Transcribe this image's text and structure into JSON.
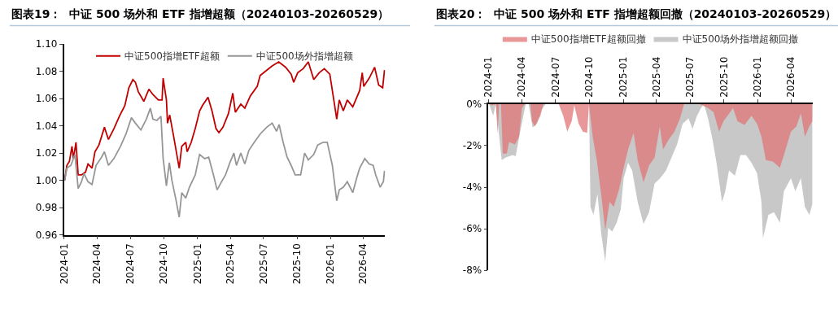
{
  "chart_data": [
    {
      "type": "line",
      "title": "图表19：  中证 500 场外和 ETF 指增超额（20240103-20260529）",
      "legend": "top",
      "marker": "none",
      "line_style": "solid",
      "xlim": [
        "2024-01-01",
        "2026-05-31"
      ],
      "xticks": [
        "2024-01",
        "2024-04",
        "2024-07",
        "2024-10",
        "2025-01",
        "2025-04",
        "2025-07",
        "2025-10",
        "2026-01",
        "2026-04"
      ],
      "ylim": [
        0.96,
        1.1
      ],
      "yticks": [
        0.96,
        0.98,
        {
          "value": 1.0,
          "label": "1.00"
        },
        1.02,
        1.04,
        1.06,
        1.08,
        {
          "value": 1.1,
          "label": "1.10"
        }
      ],
      "series": [
        {
          "name": "中证500指增ETF超额",
          "color": "#c00000",
          "x": [
            "2024-01-03",
            "2024-01-09",
            "2024-01-16",
            "2024-01-23",
            "2024-01-27",
            "2024-02-03",
            "2024-02-09",
            "2024-02-18",
            "2024-02-29",
            "2024-03-07",
            "2024-03-18",
            "2024-03-26",
            "2024-04-06",
            "2024-04-21",
            "2024-05-02",
            "2024-05-17",
            "2024-06-01",
            "2024-06-16",
            "2024-06-27",
            "2024-07-08",
            "2024-07-15",
            "2024-07-23",
            "2024-08-07",
            "2024-08-21",
            "2024-09-01",
            "2024-09-16",
            "2024-09-26",
            "2024-09-29",
            "2024-10-08",
            "2024-10-11",
            "2024-10-17",
            "2024-10-28",
            "2024-11-12",
            "2024-11-19",
            "2024-11-30",
            "2024-12-04",
            "2024-12-15",
            "2024-12-26",
            "2025-01-07",
            "2025-01-15",
            "2025-01-30",
            "2025-02-10",
            "2025-02-21",
            "2025-03-01",
            "2025-03-12",
            "2025-03-27",
            "2025-04-08",
            "2025-04-15",
            "2025-04-30",
            "2025-05-11",
            "2025-05-26",
            "2025-06-14",
            "2025-06-22",
            "2025-07-06",
            "2025-07-25",
            "2025-08-12",
            "2025-08-31",
            "2025-09-15",
            "2025-09-22",
            "2025-10-03",
            "2025-10-18",
            "2025-11-01",
            "2025-11-16",
            "2025-12-01",
            "2025-12-15",
            "2025-12-30",
            "2026-01-10",
            "2026-01-18",
            "2026-01-25",
            "2026-02-05",
            "2026-02-16",
            "2026-03-03",
            "2026-03-11",
            "2026-03-22",
            "2026-03-29",
            "2026-04-02",
            "2026-04-17",
            "2026-05-02",
            "2026-05-13",
            "2026-05-24",
            "2026-05-29"
          ],
          "values": [
            1.0,
            1.011,
            1.014,
            1.025,
            1.016,
            1.028,
            1.004,
            1.004,
            1.006,
            1.012,
            1.009,
            1.021,
            1.026,
            1.039,
            1.03,
            1.038,
            1.047,
            1.055,
            1.068,
            1.074,
            1.072,
            1.065,
            1.058,
            1.067,
            1.063,
            1.059,
            1.059,
            1.075,
            1.059,
            1.042,
            1.048,
            1.032,
            1.009,
            1.025,
            1.028,
            1.021,
            1.028,
            1.038,
            1.051,
            1.055,
            1.061,
            1.051,
            1.038,
            1.035,
            1.039,
            1.049,
            1.064,
            1.05,
            1.056,
            1.053,
            1.062,
            1.069,
            1.077,
            1.08,
            1.084,
            1.087,
            1.083,
            1.078,
            1.072,
            1.079,
            1.082,
            1.087,
            1.074,
            1.079,
            1.082,
            1.078,
            1.059,
            1.045,
            1.059,
            1.051,
            1.059,
            1.054,
            1.059,
            1.066,
            1.079,
            1.069,
            1.075,
            1.083,
            1.07,
            1.068,
            1.081
          ]
        },
        {
          "name": "中证500场外指增超额",
          "color": "#969696",
          "x": [
            "2024-01-03",
            "2024-01-09",
            "2024-01-20",
            "2024-01-31",
            "2024-02-09",
            "2024-02-18",
            "2024-02-25",
            "2024-03-07",
            "2024-03-18",
            "2024-03-29",
            "2024-04-13",
            "2024-04-21",
            "2024-05-02",
            "2024-05-17",
            "2024-06-04",
            "2024-06-19",
            "2024-07-04",
            "2024-07-15",
            "2024-07-30",
            "2024-08-14",
            "2024-08-25",
            "2024-09-01",
            "2024-09-12",
            "2024-09-23",
            "2024-09-29",
            "2024-10-08",
            "2024-10-16",
            "2024-10-23",
            "2024-11-03",
            "2024-11-12",
            "2024-11-19",
            "2024-11-30",
            "2024-12-10",
            "2024-12-26",
            "2025-01-07",
            "2025-01-21",
            "2025-02-01",
            "2025-02-13",
            "2025-02-24",
            "2025-03-08",
            "2025-03-19",
            "2025-03-31",
            "2025-04-11",
            "2025-04-18",
            "2025-04-30",
            "2025-05-11",
            "2025-05-22",
            "2025-06-06",
            "2025-06-22",
            "2025-07-10",
            "2025-07-25",
            "2025-08-06",
            "2025-08-13",
            "2025-08-24",
            "2025-09-04",
            "2025-09-15",
            "2025-09-26",
            "2025-10-11",
            "2025-10-22",
            "2025-11-01",
            "2025-11-16",
            "2025-11-27",
            "2025-12-12",
            "2025-12-23",
            "2026-01-06",
            "2026-01-18",
            "2026-01-25",
            "2026-02-05",
            "2026-02-16",
            "2026-03-03",
            "2026-03-14",
            "2026-03-22",
            "2026-04-05",
            "2026-04-17",
            "2026-04-28",
            "2026-05-05",
            "2026-05-17",
            "2026-05-26",
            "2026-05-29"
          ],
          "values": [
            1.0,
            1.009,
            1.011,
            1.019,
            0.994,
            0.999,
            1.005,
            0.999,
            0.997,
            1.011,
            1.017,
            1.021,
            1.011,
            1.016,
            1.025,
            1.034,
            1.046,
            1.042,
            1.037,
            1.045,
            1.053,
            1.045,
            1.044,
            1.047,
            1.016,
            0.996,
            1.013,
            1.0,
            0.986,
            0.973,
            0.991,
            0.987,
            0.995,
            1.004,
            1.019,
            1.016,
            1.017,
            1.005,
            0.993,
            0.999,
            1.004,
            1.013,
            1.02,
            1.011,
            1.02,
            1.012,
            1.022,
            1.028,
            1.034,
            1.039,
            1.042,
            1.036,
            1.041,
            1.028,
            1.017,
            1.011,
            1.004,
            1.004,
            1.02,
            1.015,
            1.019,
            1.026,
            1.028,
            1.028,
            1.011,
            0.985,
            0.993,
            0.995,
            0.999,
            0.991,
            1.002,
            1.009,
            1.016,
            1.012,
            1.011,
            1.004,
            0.995,
            0.999,
            1.007
          ]
        }
      ]
    },
    {
      "type": "area",
      "title": "图表20：  中证 500 场外和 ETF 指增超额回撤（20240103-20260529）",
      "legend": "top",
      "xlim": [
        "2024-01-01",
        "2026-05-31"
      ],
      "xticks": [
        "2024-01",
        "2024-04",
        "2024-07",
        "2024-10",
        "2025-01",
        "2025-04",
        "2025-07",
        "2025-10",
        "2026-01",
        "2026-04"
      ],
      "ylim": [
        -8,
        0
      ],
      "yticks": [
        {
          "value": -8,
          "label": "-8%"
        },
        {
          "value": -6,
          "label": "-6%"
        },
        {
          "value": -4,
          "label": "-4%"
        },
        {
          "value": -2,
          "label": "-2%"
        },
        {
          "value": 0,
          "label": "0%"
        }
      ],
      "series": [
        {
          "name": "中证500指增ETF超额回撤",
          "color": "#e07575",
          "x": [
            "2024-01-03",
            "2024-01-11",
            "2024-01-21",
            "2024-01-26",
            "2024-01-30",
            "2024-02-04",
            "2024-02-09",
            "2024-02-20",
            "2024-02-26",
            "2024-03-13",
            "2024-03-24",
            "2024-04-01",
            "2024-04-09",
            "2024-04-24",
            "2024-04-28",
            "2024-05-06",
            "2024-05-21",
            "2024-05-29",
            "2024-07-10",
            "2024-07-22",
            "2024-08-02",
            "2024-08-14",
            "2024-08-21",
            "2024-09-02",
            "2024-09-13",
            "2024-09-25",
            "2024-09-30",
            "2024-10-10",
            "2024-10-21",
            "2024-11-02",
            "2024-11-13",
            "2024-11-25",
            "2024-12-06",
            "2024-12-21",
            "2025-01-02",
            "2025-01-14",
            "2025-01-29",
            "2025-02-09",
            "2025-02-25",
            "2025-03-12",
            "2025-03-27",
            "2025-04-10",
            "2025-04-19",
            "2025-05-05",
            "2025-05-20",
            "2025-06-04",
            "2025-06-15",
            "2025-07-27",
            "2025-08-19",
            "2025-09-03",
            "2025-09-18",
            "2025-09-30",
            "2025-10-11",
            "2025-10-26",
            "2025-11-07",
            "2025-11-26",
            "2025-12-15",
            "2025-12-30",
            "2026-01-11",
            "2026-01-23",
            "2026-02-11",
            "2026-03-02",
            "2026-03-13",
            "2026-04-01",
            "2026-04-16",
            "2026-04-28",
            "2026-05-09",
            "2026-05-21",
            "2026-05-29"
          ],
          "values": [
            0,
            -0.06,
            0,
            -1.44,
            0,
            0,
            -2.38,
            -2.38,
            -1.82,
            -1.94,
            -1.57,
            -0.19,
            0,
            0,
            -0.82,
            -1.07,
            -0.56,
            0,
            0,
            -0.56,
            -1.32,
            -0.82,
            -0.06,
            -0.94,
            -1.32,
            -1.38,
            0,
            -1.57,
            -2.7,
            -4.33,
            -6.08,
            -4.7,
            -4.95,
            -4.08,
            -3.07,
            -2.19,
            -1.38,
            -2.7,
            -3.76,
            -2.95,
            -2.57,
            -1.07,
            -2.19,
            -1.69,
            -1.32,
            -0.69,
            0,
            0,
            -0.19,
            -0.38,
            -1.32,
            -0.82,
            -0.56,
            -0.19,
            -0.82,
            -1.0,
            -0.56,
            -0.94,
            -1.57,
            -2.7,
            -2.76,
            -3.07,
            -2.45,
            -1.32,
            -1.07,
            -0.44,
            -1.57,
            -1.07,
            -0.82
          ]
        },
        {
          "name": "中证500场外指增超额回撤",
          "color": "#c8c8c8",
          "x": [
            "2024-01-03",
            "2024-01-14",
            "2024-01-21",
            "2024-02-06",
            "2024-02-17",
            "2024-03-07",
            "2024-03-15",
            "2024-03-26",
            "2024-04-11",
            "2024-04-19",
            "2024-04-30",
            "2024-05-12",
            "2024-05-23",
            "2024-06-04",
            "2024-09-30",
            "2024-10-04",
            "2024-10-12",
            "2024-10-23",
            "2024-11-02",
            "2024-11-13",
            "2024-11-21",
            "2024-12-02",
            "2024-12-14",
            "2024-12-25",
            "2025-01-02",
            "2025-01-14",
            "2025-01-25",
            "2025-02-09",
            "2025-02-25",
            "2025-03-12",
            "2025-03-27",
            "2025-04-11",
            "2025-04-27",
            "2025-05-12",
            "2025-05-27",
            "2025-06-11",
            "2025-06-27",
            "2025-07-08",
            "2025-07-20",
            "2025-07-31",
            "2025-08-08",
            "2025-08-19",
            "2025-08-31",
            "2025-09-11",
            "2025-09-26",
            "2025-10-04",
            "2025-10-15",
            "2025-10-31",
            "2025-11-15",
            "2025-11-30",
            "2025-12-15",
            "2025-12-30",
            "2026-01-11",
            "2026-01-15",
            "2026-01-30",
            "2026-02-14",
            "2026-03-02",
            "2026-03-13",
            "2026-04-01",
            "2026-04-13",
            "2026-04-28",
            "2026-05-09",
            "2026-05-21",
            "2026-05-29"
          ],
          "values": [
            0,
            -0.56,
            0,
            -2.7,
            -2.57,
            -2.45,
            -2.51,
            -1.44,
            0,
            0,
            -1.13,
            -0.94,
            -0.31,
            0,
            0,
            -4.95,
            -5.33,
            -4.33,
            -6.21,
            -7.59,
            -5.96,
            -6.14,
            -5.71,
            -5.08,
            -3.57,
            -2.82,
            -3.2,
            -4.7,
            -5.77,
            -5.2,
            -3.82,
            -3.57,
            -3.2,
            -2.57,
            -1.94,
            -0.94,
            -0.69,
            -1.19,
            -0.56,
            -0.19,
            0,
            -0.69,
            -1.69,
            -2.82,
            -4.7,
            -4.26,
            -3.2,
            -3.45,
            -2.45,
            -2.45,
            -2.82,
            -3.32,
            -4.7,
            -6.46,
            -5.33,
            -5.2,
            -5.71,
            -4.2,
            -3.57,
            -4.2,
            -3.57,
            -4.95,
            -5.33,
            -4.83
          ]
        }
      ]
    }
  ]
}
